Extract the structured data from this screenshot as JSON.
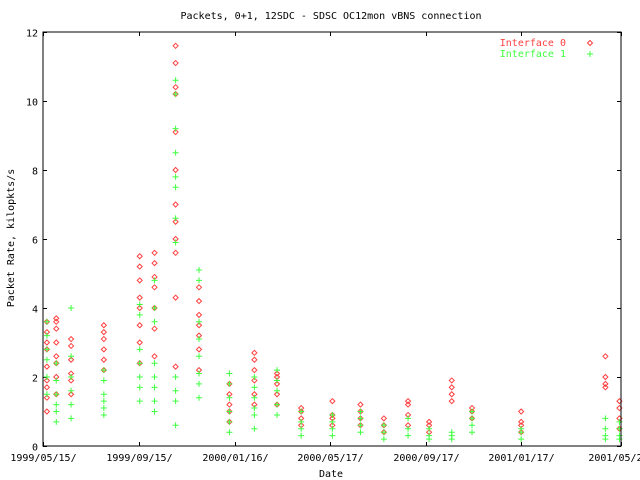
{
  "chart_data": {
    "type": "scatter",
    "title": "Packets, 0+1, 12SDC - SDSC OC12mon vBNS connection",
    "xlabel": "Date",
    "ylabel": "Packet Rate, kilopkts/s",
    "xlim": [
      "1999-05-15",
      "2001-05-25"
    ],
    "ylim": [
      0,
      12
    ],
    "x_ticks": [
      "1999/05/15/",
      "1999/09/15/",
      "2000/01/16/",
      "2000/05/17/",
      "2000/09/17/",
      "2001/01/17/",
      "2001/05/25/"
    ],
    "y_ticks": [
      "0",
      "2",
      "4",
      "6",
      "8",
      "10",
      "12"
    ],
    "legend_position": "top-right",
    "series": [
      {
        "name": "Interface 0",
        "color": "#ff4040",
        "marker": "diamond",
        "points": [
          [
            "1999-05-20",
            1.0
          ],
          [
            "1999-05-20",
            1.4
          ],
          [
            "1999-05-20",
            1.7
          ],
          [
            "1999-05-20",
            1.9
          ],
          [
            "1999-05-20",
            2.3
          ],
          [
            "1999-05-20",
            2.8
          ],
          [
            "1999-05-20",
            3.0
          ],
          [
            "1999-05-20",
            3.3
          ],
          [
            "1999-05-20",
            3.6
          ],
          [
            "1999-06-01",
            1.5
          ],
          [
            "1999-06-01",
            2.0
          ],
          [
            "1999-06-01",
            2.4
          ],
          [
            "1999-06-01",
            2.6
          ],
          [
            "1999-06-01",
            3.0
          ],
          [
            "1999-06-01",
            3.4
          ],
          [
            "1999-06-01",
            3.6
          ],
          [
            "1999-06-01",
            3.7
          ],
          [
            "1999-06-20",
            1.5
          ],
          [
            "1999-06-20",
            1.9
          ],
          [
            "1999-06-20",
            2.1
          ],
          [
            "1999-06-20",
            2.5
          ],
          [
            "1999-06-20",
            2.9
          ],
          [
            "1999-06-20",
            3.1
          ],
          [
            "1999-08-01",
            2.2
          ],
          [
            "1999-08-01",
            2.5
          ],
          [
            "1999-08-01",
            2.8
          ],
          [
            "1999-08-01",
            3.1
          ],
          [
            "1999-08-01",
            3.3
          ],
          [
            "1999-08-01",
            3.5
          ],
          [
            "1999-09-16",
            2.4
          ],
          [
            "1999-09-16",
            3.0
          ],
          [
            "1999-09-16",
            3.5
          ],
          [
            "1999-09-16",
            4.0
          ],
          [
            "1999-09-16",
            4.3
          ],
          [
            "1999-09-16",
            4.8
          ],
          [
            "1999-09-16",
            5.2
          ],
          [
            "1999-09-16",
            5.5
          ],
          [
            "1999-10-05",
            2.6
          ],
          [
            "1999-10-05",
            3.4
          ],
          [
            "1999-10-05",
            4.0
          ],
          [
            "1999-10-05",
            4.6
          ],
          [
            "1999-10-05",
            4.9
          ],
          [
            "1999-10-05",
            5.3
          ],
          [
            "1999-10-05",
            5.6
          ],
          [
            "1999-11-01",
            2.3
          ],
          [
            "1999-11-01",
            4.3
          ],
          [
            "1999-11-01",
            5.6
          ],
          [
            "1999-11-01",
            6.0
          ],
          [
            "1999-11-01",
            6.5
          ],
          [
            "1999-11-01",
            7.0
          ],
          [
            "1999-11-01",
            8.0
          ],
          [
            "1999-11-01",
            9.1
          ],
          [
            "1999-11-01",
            10.2
          ],
          [
            "1999-11-01",
            10.4
          ],
          [
            "1999-11-01",
            11.1
          ],
          [
            "1999-11-01",
            11.6
          ],
          [
            "1999-12-01",
            2.2
          ],
          [
            "1999-12-01",
            2.8
          ],
          [
            "1999-12-01",
            3.2
          ],
          [
            "1999-12-01",
            3.5
          ],
          [
            "1999-12-01",
            3.8
          ],
          [
            "1999-12-01",
            4.2
          ],
          [
            "1999-12-01",
            4.6
          ],
          [
            "2000-01-09",
            0.7
          ],
          [
            "2000-01-09",
            1.0
          ],
          [
            "2000-01-09",
            1.2
          ],
          [
            "2000-01-09",
            1.5
          ],
          [
            "2000-01-09",
            1.8
          ],
          [
            "2000-02-10",
            1.2
          ],
          [
            "2000-02-10",
            1.5
          ],
          [
            "2000-02-10",
            1.9
          ],
          [
            "2000-02-10",
            2.2
          ],
          [
            "2000-02-10",
            2.5
          ],
          [
            "2000-02-10",
            2.7
          ],
          [
            "2000-03-10",
            1.2
          ],
          [
            "2000-03-10",
            1.5
          ],
          [
            "2000-03-10",
            1.8
          ],
          [
            "2000-03-10",
            2.0
          ],
          [
            "2000-03-10",
            2.1
          ],
          [
            "2000-04-10",
            0.6
          ],
          [
            "2000-04-10",
            0.8
          ],
          [
            "2000-04-10",
            1.0
          ],
          [
            "2000-04-10",
            1.1
          ],
          [
            "2000-05-20",
            0.6
          ],
          [
            "2000-05-20",
            0.8
          ],
          [
            "2000-05-20",
            0.9
          ],
          [
            "2000-05-20",
            1.3
          ],
          [
            "2000-06-25",
            0.6
          ],
          [
            "2000-06-25",
            0.8
          ],
          [
            "2000-06-25",
            1.0
          ],
          [
            "2000-06-25",
            1.2
          ],
          [
            "2000-07-25",
            0.4
          ],
          [
            "2000-07-25",
            0.6
          ],
          [
            "2000-07-25",
            0.8
          ],
          [
            "2000-08-25",
            0.6
          ],
          [
            "2000-08-25",
            0.9
          ],
          [
            "2000-08-25",
            1.2
          ],
          [
            "2000-08-25",
            1.3
          ],
          [
            "2000-09-21",
            0.4
          ],
          [
            "2000-09-21",
            0.6
          ],
          [
            "2000-09-21",
            0.7
          ],
          [
            "2000-10-20",
            1.3
          ],
          [
            "2000-10-20",
            1.5
          ],
          [
            "2000-10-20",
            1.7
          ],
          [
            "2000-10-20",
            1.9
          ],
          [
            "2000-11-15",
            0.8
          ],
          [
            "2000-11-15",
            1.0
          ],
          [
            "2000-11-15",
            1.1
          ],
          [
            "2001-01-17",
            0.4
          ],
          [
            "2001-01-17",
            0.6
          ],
          [
            "2001-01-17",
            0.7
          ],
          [
            "2001-01-17",
            1.0
          ],
          [
            "2001-05-05",
            1.7
          ],
          [
            "2001-05-05",
            1.8
          ],
          [
            "2001-05-05",
            2.0
          ],
          [
            "2001-05-05",
            2.6
          ],
          [
            "2001-05-23",
            0.5
          ],
          [
            "2001-05-23",
            0.8
          ],
          [
            "2001-05-23",
            1.1
          ],
          [
            "2001-05-23",
            1.3
          ]
        ]
      },
      {
        "name": "Interface 1",
        "color": "#40ff40",
        "marker": "plus",
        "points": [
          [
            "1999-05-20",
            1.5
          ],
          [
            "1999-05-20",
            2.0
          ],
          [
            "1999-05-20",
            2.5
          ],
          [
            "1999-05-20",
            2.8
          ],
          [
            "1999-05-20",
            3.2
          ],
          [
            "1999-05-20",
            3.6
          ],
          [
            "1999-06-01",
            0.7
          ],
          [
            "1999-06-01",
            1.0
          ],
          [
            "1999-06-01",
            1.2
          ],
          [
            "1999-06-01",
            1.5
          ],
          [
            "1999-06-01",
            1.9
          ],
          [
            "1999-06-01",
            2.4
          ],
          [
            "1999-06-20",
            0.8
          ],
          [
            "1999-06-20",
            1.2
          ],
          [
            "1999-06-20",
            1.6
          ],
          [
            "1999-06-20",
            2.0
          ],
          [
            "1999-06-20",
            2.6
          ],
          [
            "1999-06-20",
            4.0
          ],
          [
            "1999-08-01",
            0.9
          ],
          [
            "1999-08-01",
            1.1
          ],
          [
            "1999-08-01",
            1.3
          ],
          [
            "1999-08-01",
            1.5
          ],
          [
            "1999-08-01",
            1.9
          ],
          [
            "1999-08-01",
            2.2
          ],
          [
            "1999-09-16",
            1.3
          ],
          [
            "1999-09-16",
            1.7
          ],
          [
            "1999-09-16",
            2.0
          ],
          [
            "1999-09-16",
            2.4
          ],
          [
            "1999-09-16",
            2.8
          ],
          [
            "1999-09-16",
            3.8
          ],
          [
            "1999-09-16",
            4.1
          ],
          [
            "1999-10-05",
            1.0
          ],
          [
            "1999-10-05",
            1.3
          ],
          [
            "1999-10-05",
            1.7
          ],
          [
            "1999-10-05",
            2.0
          ],
          [
            "1999-10-05",
            2.4
          ],
          [
            "1999-10-05",
            3.6
          ],
          [
            "1999-10-05",
            4.0
          ],
          [
            "1999-10-05",
            4.8
          ],
          [
            "1999-11-01",
            0.6
          ],
          [
            "1999-11-01",
            1.3
          ],
          [
            "1999-11-01",
            1.6
          ],
          [
            "1999-11-01",
            2.0
          ],
          [
            "1999-11-01",
            5.9
          ],
          [
            "1999-11-01",
            6.6
          ],
          [
            "1999-11-01",
            7.5
          ],
          [
            "1999-11-01",
            7.8
          ],
          [
            "1999-11-01",
            8.5
          ],
          [
            "1999-11-01",
            9.2
          ],
          [
            "1999-11-01",
            10.2
          ],
          [
            "1999-11-01",
            10.6
          ],
          [
            "1999-12-01",
            1.4
          ],
          [
            "1999-12-01",
            1.8
          ],
          [
            "1999-12-01",
            2.1
          ],
          [
            "1999-12-01",
            2.6
          ],
          [
            "1999-12-01",
            3.1
          ],
          [
            "1999-12-01",
            3.6
          ],
          [
            "1999-12-01",
            4.8
          ],
          [
            "1999-12-01",
            5.1
          ],
          [
            "2000-01-09",
            0.4
          ],
          [
            "2000-01-09",
            0.7
          ],
          [
            "2000-01-09",
            1.0
          ],
          [
            "2000-01-09",
            1.4
          ],
          [
            "2000-01-09",
            1.8
          ],
          [
            "2000-01-09",
            2.1
          ],
          [
            "2000-02-10",
            0.5
          ],
          [
            "2000-02-10",
            0.9
          ],
          [
            "2000-02-10",
            1.1
          ],
          [
            "2000-02-10",
            1.4
          ],
          [
            "2000-02-10",
            1.7
          ],
          [
            "2000-02-10",
            2.0
          ],
          [
            "2000-03-10",
            0.9
          ],
          [
            "2000-03-10",
            1.2
          ],
          [
            "2000-03-10",
            1.6
          ],
          [
            "2000-03-10",
            1.9
          ],
          [
            "2000-03-10",
            2.2
          ],
          [
            "2000-04-10",
            0.3
          ],
          [
            "2000-04-10",
            0.5
          ],
          [
            "2000-04-10",
            0.7
          ],
          [
            "2000-04-10",
            1.0
          ],
          [
            "2000-05-20",
            0.3
          ],
          [
            "2000-05-20",
            0.5
          ],
          [
            "2000-05-20",
            0.7
          ],
          [
            "2000-05-20",
            0.9
          ],
          [
            "2000-06-25",
            0.4
          ],
          [
            "2000-06-25",
            0.6
          ],
          [
            "2000-06-25",
            0.8
          ],
          [
            "2000-06-25",
            1.0
          ],
          [
            "2000-07-25",
            0.2
          ],
          [
            "2000-07-25",
            0.4
          ],
          [
            "2000-07-25",
            0.6
          ],
          [
            "2000-08-25",
            0.3
          ],
          [
            "2000-08-25",
            0.5
          ],
          [
            "2000-08-25",
            0.8
          ],
          [
            "2000-09-21",
            0.2
          ],
          [
            "2000-09-21",
            0.3
          ],
          [
            "2000-09-21",
            0.5
          ],
          [
            "2000-10-20",
            0.2
          ],
          [
            "2000-10-20",
            0.3
          ],
          [
            "2000-10-20",
            0.4
          ],
          [
            "2000-11-15",
            0.4
          ],
          [
            "2000-11-15",
            0.6
          ],
          [
            "2000-11-15",
            0.8
          ],
          [
            "2000-11-15",
            1.0
          ],
          [
            "2001-01-17",
            0.2
          ],
          [
            "2001-01-17",
            0.4
          ],
          [
            "2001-01-17",
            0.5
          ],
          [
            "2001-05-05",
            0.2
          ],
          [
            "2001-05-05",
            0.3
          ],
          [
            "2001-05-05",
            0.5
          ],
          [
            "2001-05-05",
            0.8
          ],
          [
            "2001-05-23",
            0.2
          ],
          [
            "2001-05-23",
            0.3
          ],
          [
            "2001-05-23",
            0.5
          ],
          [
            "2001-05-23",
            0.7
          ]
        ]
      }
    ]
  }
}
